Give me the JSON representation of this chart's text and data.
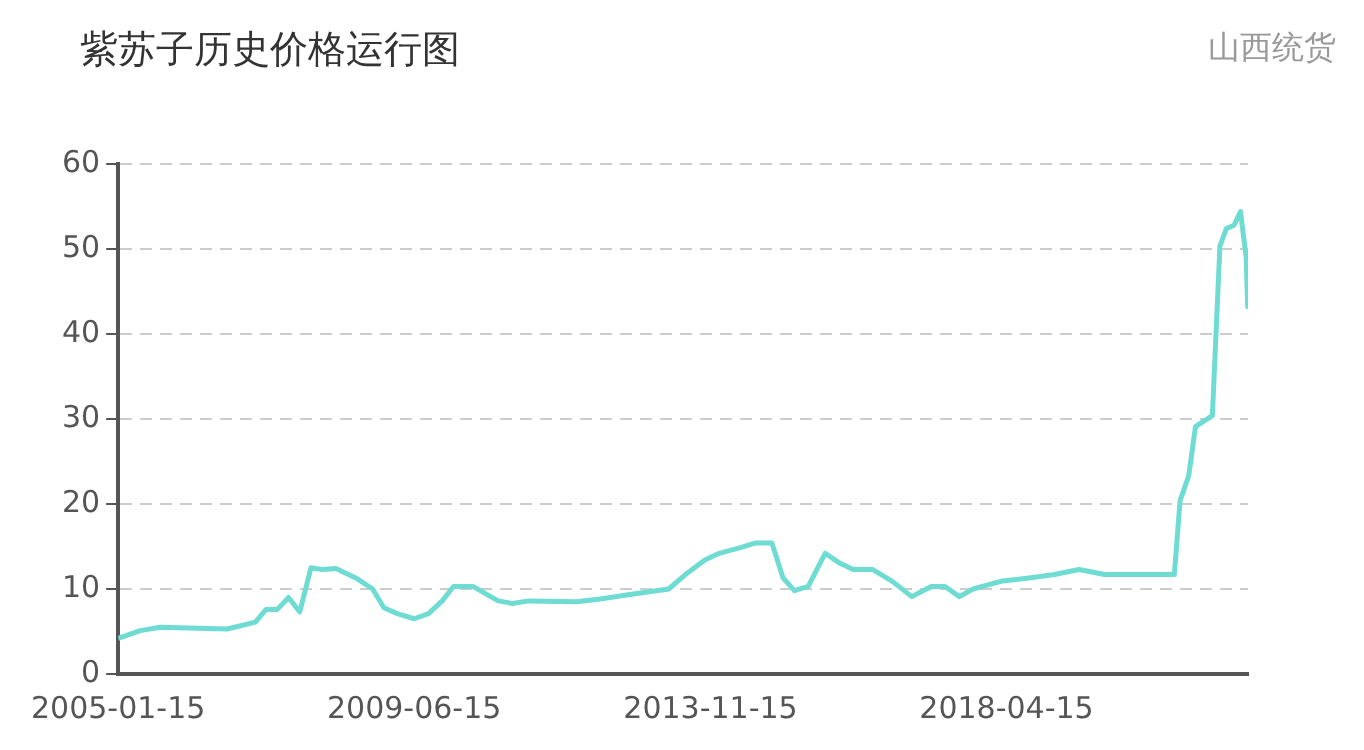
{
  "chart_data": {
    "type": "line",
    "title": "紫苏子历史价格运行图",
    "subtitle": "山西统货",
    "x": [
      "2005-01-15",
      "2005-05-15",
      "2005-09-01",
      "2006-09-01",
      "2007-02-01",
      "2007-04-01",
      "2007-06-01",
      "2007-08-01",
      "2007-10-01",
      "2007-12-01",
      "2008-02-01",
      "2008-04-15",
      "2008-08-01",
      "2008-11-01",
      "2009-01-01",
      "2009-03-15",
      "2009-06-15",
      "2009-09-01",
      "2009-11-15",
      "2010-01-15",
      "2010-05-01",
      "2010-09-15",
      "2010-12-01",
      "2011-03-01",
      "2011-11-15",
      "2012-03-15",
      "2012-08-15",
      "2013-04-01",
      "2013-07-01",
      "2013-10-15",
      "2014-01-01",
      "2014-05-01",
      "2014-07-15",
      "2014-10-15",
      "2014-12-15",
      "2015-02-15",
      "2015-05-01",
      "2015-08-01",
      "2015-10-15",
      "2016-01-01",
      "2016-04-15",
      "2016-08-01",
      "2016-11-15",
      "2017-03-01",
      "2017-05-15",
      "2017-08-01",
      "2017-10-15",
      "2018-03-15",
      "2018-08-15",
      "2019-01-01",
      "2019-05-15",
      "2019-10-01",
      "2020-10-15",
      "2020-11-15",
      "2021-01-01",
      "2021-02-07",
      "2021-05-10",
      "2021-06-20",
      "2021-07-25",
      "2021-09-05",
      "2021-10-10",
      "2021-11-10",
      "2021-11-18"
    ],
    "series": [
      {
        "color": "#6fdcd3",
        "values": [
          4.2,
          5.1,
          5.5,
          5.3,
          6.1,
          7.6,
          7.6,
          9.0,
          7.3,
          12.5,
          12.3,
          12.4,
          11.3,
          10.0,
          7.8,
          7.1,
          6.5,
          7.1,
          8.6,
          10.3,
          10.3,
          8.6,
          8.3,
          8.6,
          8.5,
          8.8,
          9.3,
          10.0,
          11.7,
          13.4,
          14.2,
          14.9,
          15.4,
          15.4,
          11.3,
          9.8,
          10.3,
          14.2,
          13.1,
          12.3,
          12.3,
          10.9,
          9.1,
          10.3,
          10.3,
          9.1,
          10.0,
          10.9,
          11.3,
          11.7,
          12.3,
          11.7,
          11.7,
          20.4,
          23.3,
          29.1,
          30.4,
          50.3,
          52.4,
          52.8,
          54.4,
          49.0,
          43.2
        ]
      }
    ],
    "xlim": [
      "2005-01-15",
      "2021-11-20"
    ],
    "xticks": [
      "2005-01-15",
      "2009-06-15",
      "2013-11-15",
      "2018-04-15"
    ],
    "ylim": [
      0,
      60
    ],
    "yticks": [
      0,
      10,
      20,
      30,
      40,
      50,
      60
    ],
    "grid": "y",
    "legend": false,
    "line_style": "solid"
  }
}
